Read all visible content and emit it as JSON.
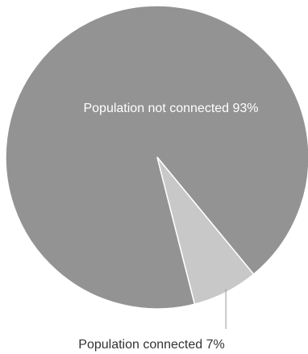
{
  "chart_data": {
    "type": "pie",
    "title": "",
    "slices": [
      {
        "label": "Population not connected 93%",
        "value": 93,
        "color": "#939393"
      },
      {
        "label": "Population connected 7%",
        "value": 7,
        "color": "#c8c8c8"
      }
    ],
    "separator_color": "#ffffff",
    "leader_line_color": "#9a9a9a"
  }
}
